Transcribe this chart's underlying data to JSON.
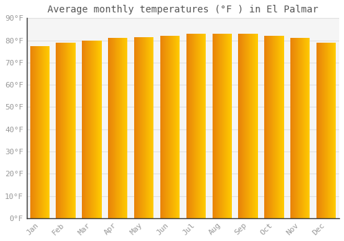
{
  "title": "Average monthly temperatures (°F ) in El Palmar",
  "months": [
    "Jan",
    "Feb",
    "Mar",
    "Apr",
    "May",
    "Jun",
    "Jul",
    "Aug",
    "Sep",
    "Oct",
    "Nov",
    "Dec"
  ],
  "values": [
    77.5,
    79.0,
    80.0,
    81.0,
    81.5,
    82.0,
    83.0,
    83.0,
    83.0,
    82.0,
    81.0,
    79.0
  ],
  "bar_color_left": "#E8820A",
  "bar_color_right": "#FFCC00",
  "background_color": "#ffffff",
  "plot_bg_color": "#f5f5f5",
  "grid_color": "#e0e0e0",
  "ytick_labels": [
    "0°F",
    "10°F",
    "20°F",
    "30°F",
    "40°F",
    "50°F",
    "60°F",
    "70°F",
    "80°F",
    "90°F"
  ],
  "ytick_values": [
    0,
    10,
    20,
    30,
    40,
    50,
    60,
    70,
    80,
    90
  ],
  "ylim": [
    0,
    90
  ],
  "title_fontsize": 10,
  "tick_fontsize": 8,
  "tick_color": "#999999",
  "spine_color": "#333333",
  "font_family": "monospace"
}
